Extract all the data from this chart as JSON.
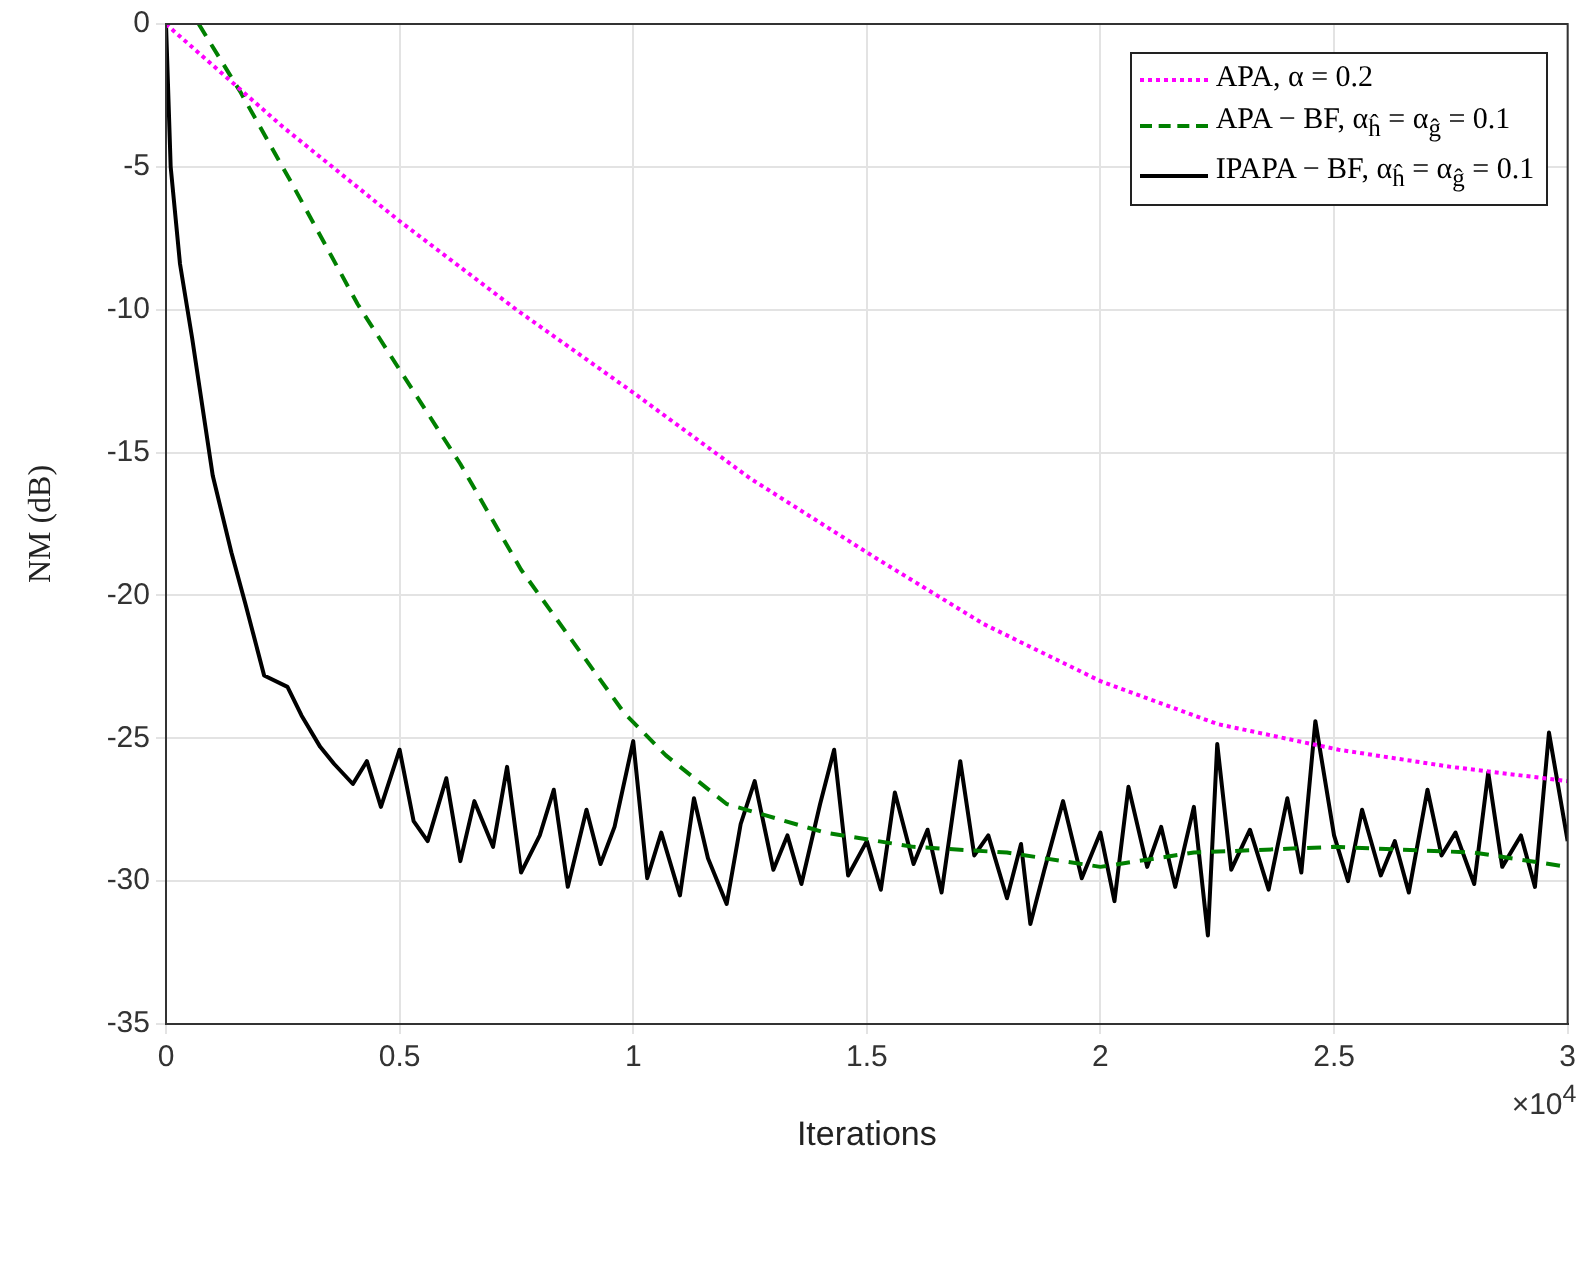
{
  "chart_data": {
    "type": "line",
    "xlabel": "Iterations",
    "ylabel": "NM (dB)",
    "annotations": [
      "×10$^{4}$"
    ],
    "xlim": [
      0,
      3
    ],
    "xticks": [
      0,
      0.5,
      1,
      1.5,
      2,
      2.5,
      3
    ],
    "ylim": [
      -35,
      0
    ],
    "yticks": [
      -35,
      -30,
      -25,
      -20,
      -15,
      -10,
      -5,
      0
    ],
    "grid": true,
    "legend": "top right",
    "marker": "none",
    "series": [
      {
        "name": "APA,  α = 0.2",
        "color": "#ff00ff",
        "line_style": "dotted",
        "x": [
          0,
          0.017,
          0.25,
          0.5,
          0.75,
          1.0,
          1.25,
          1.52,
          1.75,
          2.0,
          2.25,
          2.51,
          2.75,
          3.0
        ],
        "values": [
          0,
          -0.25,
          -3.6,
          -6.9,
          -10,
          -12.9,
          -15.9,
          -18.7,
          -21,
          -23,
          -24.5,
          -25.4,
          -26,
          -26.5
        ]
      },
      {
        "name": "APA − BF,  α$_{ĥ}$ = α$_{ĝ}$ = 0.1",
        "color": "#008000",
        "line_style": "dashed",
        "x": [
          0.07,
          0.16,
          0.27,
          0.41,
          0.5,
          0.63,
          0.76,
          0.87,
          0.98,
          1.07,
          1.2,
          1.41,
          1.6,
          1.8,
          2.0,
          2.2,
          2.5,
          2.8,
          3.0
        ],
        "values": [
          0,
          -2.4,
          -5.6,
          -9.8,
          -12.1,
          -15.4,
          -19.1,
          -21.6,
          -24.1,
          -25.6,
          -27.3,
          -28.3,
          -28.8,
          -29,
          -29.5,
          -29,
          -28.8,
          -29,
          -29.5
        ]
      },
      {
        "name": "IPAPA − BF,  α$_{ĥ}$ = α$_{ĝ}$ = 0.1",
        "color": "#000000",
        "line_style": "solid",
        "x": [
          0,
          0.01,
          0.03,
          0.056,
          0.1,
          0.14,
          0.17,
          0.21,
          0.26,
          0.29,
          0.33,
          0.36,
          0.4,
          0.43,
          0.46,
          0.5,
          0.53,
          0.56,
          0.6,
          0.63,
          0.66,
          0.7,
          0.73,
          0.76,
          0.8,
          0.83,
          0.86,
          0.9,
          0.93,
          0.96,
          1.0,
          1.03,
          1.06,
          1.1,
          1.13,
          1.16,
          1.2,
          1.23,
          1.26,
          1.3,
          1.33,
          1.36,
          1.4,
          1.43,
          1.46,
          1.5,
          1.53,
          1.56,
          1.6,
          1.63,
          1.66,
          1.7,
          1.73,
          1.76,
          1.8,
          1.83,
          1.85,
          1.88,
          1.92,
          1.96,
          2.0,
          2.03,
          2.06,
          2.1,
          2.13,
          2.16,
          2.2,
          2.23,
          2.25,
          2.28,
          2.32,
          2.36,
          2.4,
          2.43,
          2.46,
          2.5,
          2.53,
          2.56,
          2.6,
          2.63,
          2.66,
          2.7,
          2.73,
          2.76,
          2.8,
          2.83,
          2.86,
          2.9,
          2.93,
          2.96,
          3.0
        ],
        "values": [
          0,
          -5,
          -8.4,
          -11,
          -15.8,
          -18.5,
          -20.3,
          -22.8,
          -23.2,
          -24.2,
          -25.3,
          -25.9,
          -26.6,
          -25.8,
          -27.4,
          -25.4,
          -27.9,
          -28.6,
          -26.4,
          -29.3,
          -27.2,
          -28.8,
          -26,
          -29.7,
          -28.4,
          -26.8,
          -30.2,
          -27.5,
          -29.4,
          -28.1,
          -25.1,
          -29.9,
          -28.3,
          -30.5,
          -27.1,
          -29.2,
          -30.8,
          -28,
          -26.5,
          -29.6,
          -28.4,
          -30.1,
          -27.3,
          -25.4,
          -29.8,
          -28.6,
          -30.3,
          -26.9,
          -29.4,
          -28.2,
          -30.4,
          -25.8,
          -29.1,
          -28.4,
          -30.6,
          -28.7,
          -31.5,
          -29.6,
          -27.2,
          -29.9,
          -28.3,
          -30.7,
          -26.7,
          -29.5,
          -28.1,
          -30.2,
          -27.4,
          -31.9,
          -25.2,
          -29.6,
          -28.2,
          -30.3,
          -27.1,
          -29.7,
          -24.4,
          -28.4,
          -30,
          -27.5,
          -29.8,
          -28.6,
          -30.4,
          -26.8,
          -29.1,
          -28.3,
          -30.1,
          -26.2,
          -29.5,
          -28.4,
          -30.2,
          -24.8,
          -28.6
        ]
      }
    ]
  }
}
